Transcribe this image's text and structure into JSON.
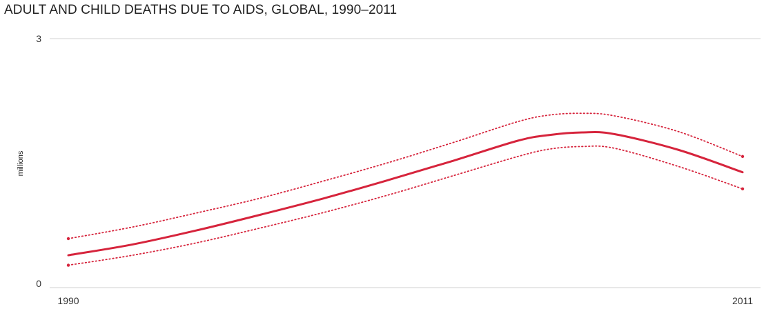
{
  "chart_data": {
    "type": "line",
    "title": "ADULT AND CHILD DEATHS DUE TO AIDS, GLOBAL, 1990–2011",
    "xlabel": "",
    "ylabel": "millions",
    "xlim": [
      1990,
      2011
    ],
    "ylim": [
      0,
      3
    ],
    "yticks": [
      "0",
      "3"
    ],
    "xticks": [
      "1990",
      "2011"
    ],
    "grid": "horizontal",
    "line_color": "#d6243c",
    "x": [
      1990,
      1992,
      1994,
      1996,
      1998,
      2000,
      2002,
      2004,
      2005,
      2006,
      2007,
      2009,
      2011
    ],
    "series": [
      {
        "values": [
          0.39,
          0.52,
          0.69,
          0.88,
          1.08,
          1.3,
          1.53,
          1.77,
          1.84,
          1.87,
          1.85,
          1.66,
          1.39
        ]
      },
      {
        "style": "dotted",
        "values": [
          0.59,
          0.73,
          0.9,
          1.08,
          1.29,
          1.51,
          1.75,
          2.0,
          2.08,
          2.1,
          2.07,
          1.88,
          1.58
        ]
      },
      {
        "style": "dotted",
        "values": [
          0.27,
          0.39,
          0.54,
          0.72,
          0.91,
          1.12,
          1.35,
          1.58,
          1.67,
          1.7,
          1.68,
          1.46,
          1.19
        ]
      }
    ]
  }
}
